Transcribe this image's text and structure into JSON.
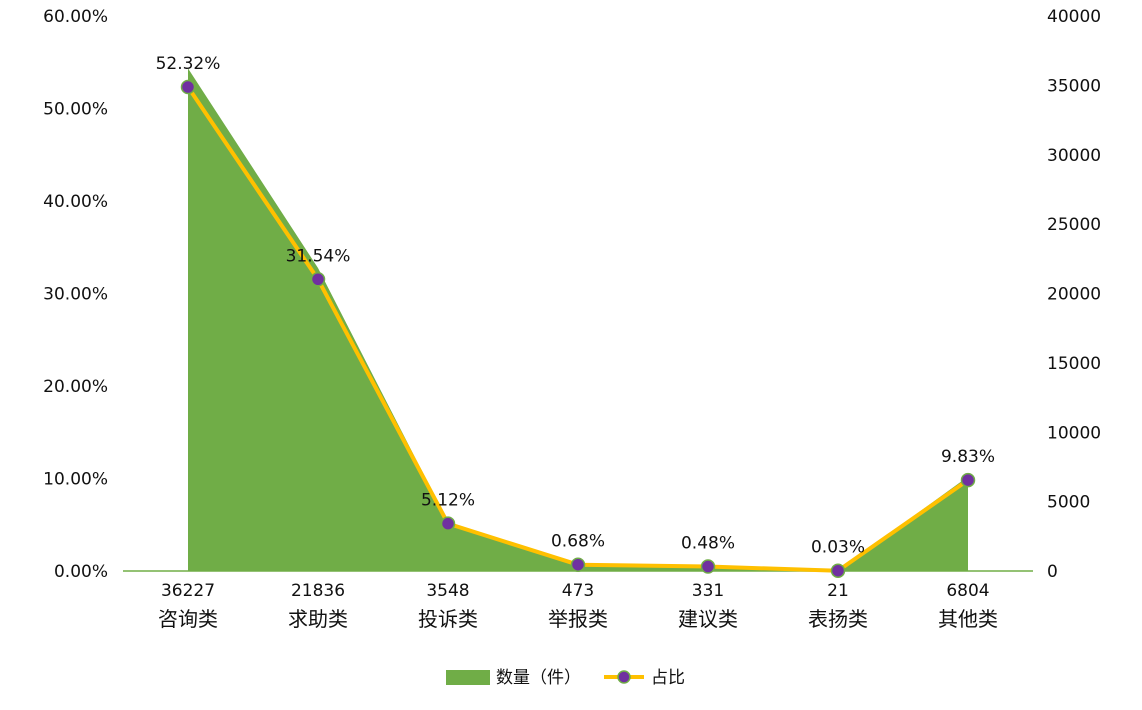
{
  "chart_data": {
    "type": "area+line",
    "categories": [
      "咨询类",
      "求助类",
      "投诉类",
      "举报类",
      "建议类",
      "表扬类",
      "其他类"
    ],
    "counts": [
      36227,
      21836,
      3548,
      473,
      331,
      21,
      6804
    ],
    "count_labels": [
      "36227",
      "21836",
      "3548",
      "473",
      "331",
      "21",
      "6804"
    ],
    "percents": [
      52.32,
      31.54,
      5.12,
      0.68,
      0.48,
      0.03,
      9.83
    ],
    "percent_labels": [
      "52.32%",
      "31.54%",
      "5.12%",
      "0.68%",
      "0.48%",
      "0.03%",
      "9.83%"
    ],
    "series": [
      {
        "name": "数量（件）",
        "type": "area",
        "axis": "right",
        "color": "#70ad47"
      },
      {
        "name": "占比",
        "type": "line",
        "axis": "left",
        "color": "#ffc000",
        "marker_color": "#7030a0"
      }
    ],
    "y_left": {
      "ticks": [
        "0.00%",
        "10.00%",
        "20.00%",
        "30.00%",
        "40.00%",
        "50.00%",
        "60.00%"
      ],
      "range": [
        0,
        60
      ]
    },
    "y_right": {
      "ticks": [
        "0",
        "5000",
        "10000",
        "15000",
        "20000",
        "25000",
        "30000",
        "35000",
        "40000"
      ],
      "range": [
        0,
        40000
      ]
    },
    "grid": false,
    "legend_position": "bottom-center",
    "legend": {
      "area_label": "数量（件）",
      "line_label": "占比"
    }
  }
}
